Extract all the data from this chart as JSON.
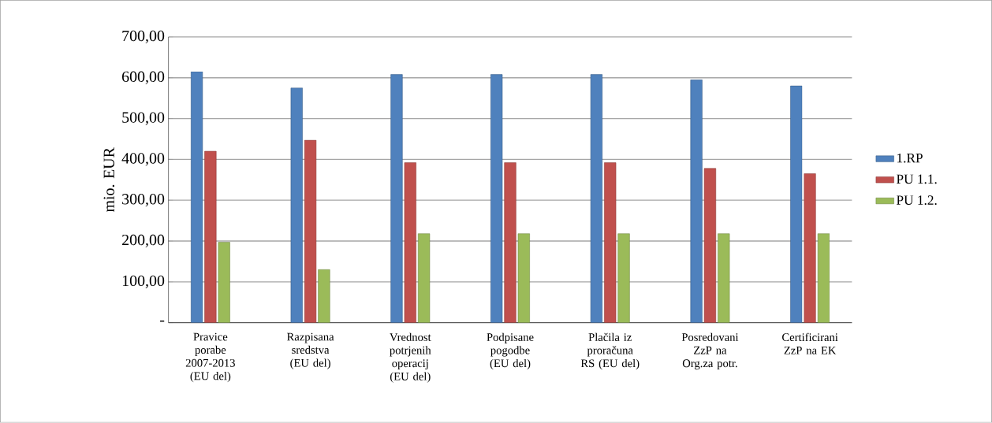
{
  "chart_data": {
    "type": "bar",
    "ylabel": "mio. EUR",
    "categories": [
      "Pravice porabe 2007-2013 (EU del)",
      "Razpisana sredstva (EU del)",
      "Vrednost potrjenih operacij (EU del)",
      "Podpisane pogodbe (EU del)",
      "Plačila iz proračuna RS (EU del)",
      "Posredovani ZzP na Org.za potr.",
      "Certificirani ZzP na EK"
    ],
    "series": [
      {
        "name": "1.RP",
        "color": "#4f81bd",
        "values": [
          615,
          575,
          608,
          608,
          608,
          595,
          580
        ]
      },
      {
        "name": "PU 1.1.",
        "color": "#c0504d",
        "values": [
          420,
          447,
          392,
          392,
          392,
          378,
          365
        ]
      },
      {
        "name": "PU 1.2.",
        "color": "#9bbb59",
        "values": [
          197,
          130,
          218,
          218,
          218,
          218,
          218
        ]
      }
    ],
    "ylim": [
      0,
      700
    ],
    "yticks": [
      {
        "value": 0,
        "label": "-"
      },
      {
        "value": 100,
        "label": "100,00"
      },
      {
        "value": 200,
        "label": "200,00"
      },
      {
        "value": 300,
        "label": "300,00"
      },
      {
        "value": 400,
        "label": "400,00"
      },
      {
        "value": 500,
        "label": "500,00"
      },
      {
        "value": 600,
        "label": "600,00"
      },
      {
        "value": 700,
        "label": "700,00"
      }
    ],
    "grid": "y",
    "legend": "right"
  }
}
